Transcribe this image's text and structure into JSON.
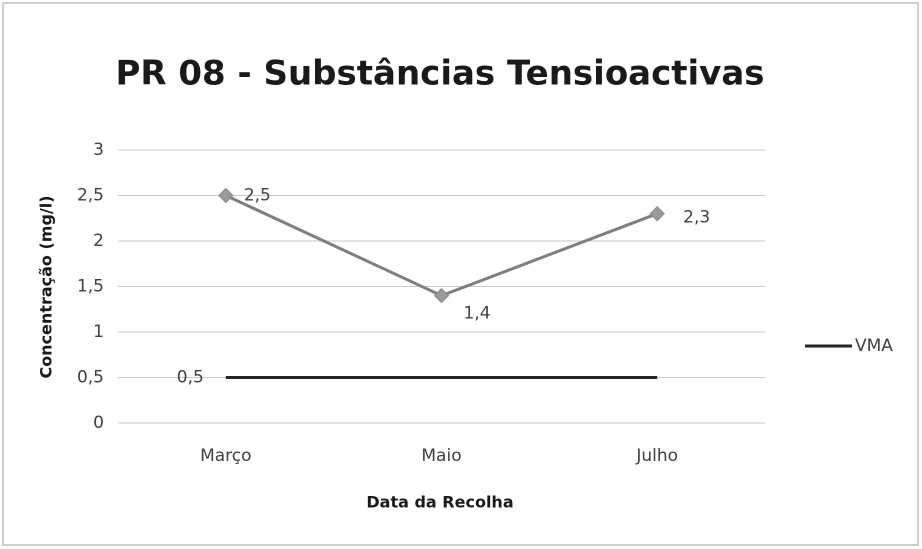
{
  "chart_data": {
    "type": "line",
    "title": "PR 08 - Substâncias Tensioactivas",
    "x_label": "Data da Recolha",
    "y_label": "Concentração (mg/l)",
    "categories": [
      "Março",
      "Maio",
      "Julho"
    ],
    "series": [
      {
        "color": "#7f7f7f",
        "marker": "diamond",
        "values": [
          2.5,
          1.4,
          2.3
        ],
        "value_labels": [
          "2,5",
          "1,4",
          "2,3"
        ]
      },
      {
        "name": "VMA",
        "color": "#262626",
        "values": [
          0.5,
          0.5,
          0.5
        ],
        "value_labels": [
          "0,5",
          null,
          null
        ]
      }
    ],
    "ylim": [
      0,
      3
    ],
    "yticks": [
      0,
      {
        "value": 0.5,
        "label": "0,5"
      },
      1,
      {
        "value": 1.5,
        "label": "1,5"
      },
      2,
      {
        "value": 2.5,
        "label": "2,5"
      },
      3
    ],
    "grid": true,
    "legend": "right"
  }
}
